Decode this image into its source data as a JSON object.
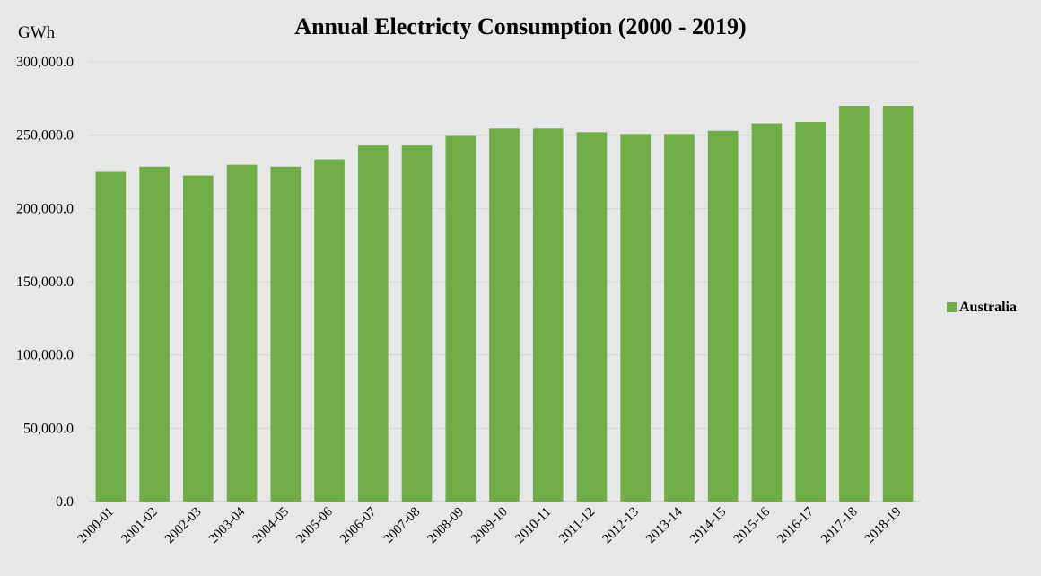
{
  "chart_data": {
    "type": "bar",
    "title": "Annual Electricty Consumption (2000 - 2019)",
    "ylabel": "GWh",
    "xlabel": "",
    "ylim": [
      0,
      300000
    ],
    "yticks": [
      0,
      50000,
      100000,
      150000,
      200000,
      250000,
      300000
    ],
    "ytick_labels": [
      "0.0",
      "50,000.0",
      "100,000.0",
      "150,000.0",
      "200,000.0",
      "250,000.0",
      "300,000.0"
    ],
    "grid": true,
    "legend_position": "right",
    "categories": [
      "2000-01",
      "2001-02",
      "2002-03",
      "2003-04",
      "2004-05",
      "2005-06",
      "2006-07",
      "2007-08",
      "2008-09",
      "2009-10",
      "2010-11",
      "2011-12",
      "2012-13",
      "2013-14",
      "2014-15",
      "2015-16",
      "2016-17",
      "2017-18",
      "2018-19"
    ],
    "series": [
      {
        "name": "Australia",
        "color": "#70ad47",
        "values": [
          225000,
          228500,
          222500,
          229800,
          228500,
          233500,
          243000,
          243000,
          249500,
          254500,
          254500,
          252000,
          250800,
          250800,
          253000,
          258000,
          259000,
          270000,
          270000
        ]
      }
    ]
  }
}
